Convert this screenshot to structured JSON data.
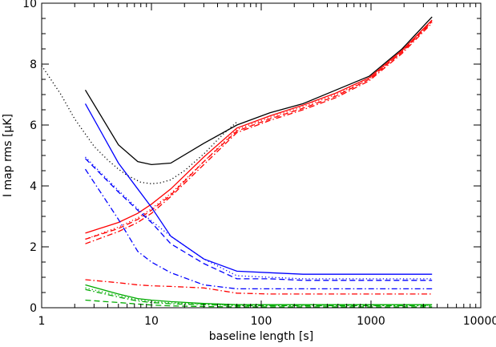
{
  "chart_data": {
    "type": "line",
    "xlabel": "baseline length [s]",
    "ylabel": "I map rms [μK]",
    "xscale": "log",
    "xlim": [
      1,
      10000
    ],
    "ylim": [
      0,
      10
    ],
    "x_ticks": [
      1,
      10,
      100,
      1000,
      10000
    ],
    "x_tick_labels": [
      "1",
      "10",
      "100",
      "1000",
      "10000"
    ],
    "y_ticks": [
      0,
      2,
      4,
      6,
      8,
      10
    ],
    "y_tick_labels": [
      "0",
      "2",
      "4",
      "6",
      "8",
      "10"
    ],
    "grid": false,
    "legend": "none",
    "x": [
      2.5,
      5,
      7.5,
      10,
      15,
      30,
      60,
      120,
      240,
      480,
      960,
      1920,
      3600
    ],
    "series": [
      {
        "color": "#000000",
        "style": "solid",
        "values": [
          7.15,
          5.35,
          4.8,
          4.7,
          4.75,
          5.4,
          6.0,
          6.4,
          6.7,
          7.15,
          7.6,
          8.5,
          9.55
        ]
      },
      {
        "color": "#ff0000",
        "style": "solid",
        "values": [
          2.45,
          2.8,
          3.1,
          3.4,
          3.9,
          4.95,
          5.9,
          6.3,
          6.65,
          7.05,
          7.55,
          8.45,
          9.45
        ]
      },
      {
        "color": "#ff0000",
        "style": "dotted",
        "values": [
          2.25,
          2.65,
          2.95,
          3.25,
          3.75,
          4.8,
          5.85,
          6.25,
          6.6,
          7.0,
          7.5,
          8.4,
          9.4
        ]
      },
      {
        "color": "#ff0000",
        "style": "dashed",
        "values": [
          2.25,
          2.6,
          2.9,
          3.2,
          3.7,
          4.8,
          5.8,
          6.2,
          6.55,
          6.95,
          7.5,
          8.4,
          9.4
        ]
      },
      {
        "color": "#ff0000",
        "style": "dashdot",
        "values": [
          2.1,
          2.5,
          2.8,
          3.1,
          3.65,
          4.7,
          5.75,
          6.15,
          6.5,
          6.9,
          7.45,
          8.35,
          9.35
        ]
      },
      {
        "color": "#0000ff",
        "style": "solid",
        "values": [
          6.7,
          4.75,
          3.9,
          3.3,
          2.35,
          1.6,
          1.2,
          1.15,
          1.1,
          1.1,
          1.1,
          1.1,
          1.1
        ]
      },
      {
        "color": "#0000ff",
        "style": "dotted",
        "values": [
          4.95,
          3.85,
          3.25,
          2.85,
          2.35,
          1.6,
          1.05,
          1.0,
          0.95,
          0.95,
          0.95,
          0.95,
          0.95
        ]
      },
      {
        "color": "#0000ff",
        "style": "dashed",
        "values": [
          4.9,
          3.8,
          3.2,
          2.8,
          2.1,
          1.45,
          0.95,
          0.95,
          0.9,
          0.9,
          0.9,
          0.9,
          0.9
        ]
      },
      {
        "color": "#0000ff",
        "style": "dashdot",
        "values": [
          4.55,
          2.9,
          1.85,
          1.5,
          1.15,
          0.75,
          0.62,
          0.62,
          0.62,
          0.62,
          0.62,
          0.62,
          0.62
        ]
      },
      {
        "color": "#ff0000",
        "style": "dashdot",
        "values": [
          0.92,
          0.82,
          0.75,
          0.72,
          0.7,
          0.65,
          0.48,
          0.45,
          0.45,
          0.45,
          0.45,
          0.45,
          0.45
        ]
      },
      {
        "color": "#00aa00",
        "style": "solid",
        "values": [
          0.75,
          0.45,
          0.3,
          0.25,
          0.2,
          0.14,
          0.1,
          0.1,
          0.1,
          0.1,
          0.1,
          0.1,
          0.1
        ]
      },
      {
        "color": "#00aa00",
        "style": "dotted",
        "values": [
          0.65,
          0.4,
          0.26,
          0.2,
          0.16,
          0.12,
          0.08,
          0.08,
          0.08,
          0.08,
          0.08,
          0.08,
          0.08
        ]
      },
      {
        "color": "#00aa00",
        "style": "dashdot",
        "values": [
          0.6,
          0.35,
          0.22,
          0.17,
          0.13,
          0.1,
          0.07,
          0.07,
          0.07,
          0.07,
          0.07,
          0.07,
          0.07
        ]
      },
      {
        "color": "#00aa00",
        "style": "dashed",
        "values": [
          0.25,
          0.17,
          0.12,
          0.09,
          0.06,
          0.04,
          0.03,
          0.03,
          0.03,
          0.03,
          0.03,
          0.03,
          0.03
        ]
      }
    ],
    "extra_series": [
      {
        "color": "#000000",
        "style": "dotted",
        "x": [
          1,
          1.5,
          2,
          3,
          4,
          5,
          6,
          8,
          10,
          12,
          15,
          20,
          30,
          45,
          60
        ],
        "values": [
          7.95,
          7.0,
          6.2,
          5.3,
          4.85,
          4.55,
          4.35,
          4.12,
          4.07,
          4.1,
          4.2,
          4.5,
          5.05,
          5.7,
          6.1
        ]
      }
    ]
  }
}
